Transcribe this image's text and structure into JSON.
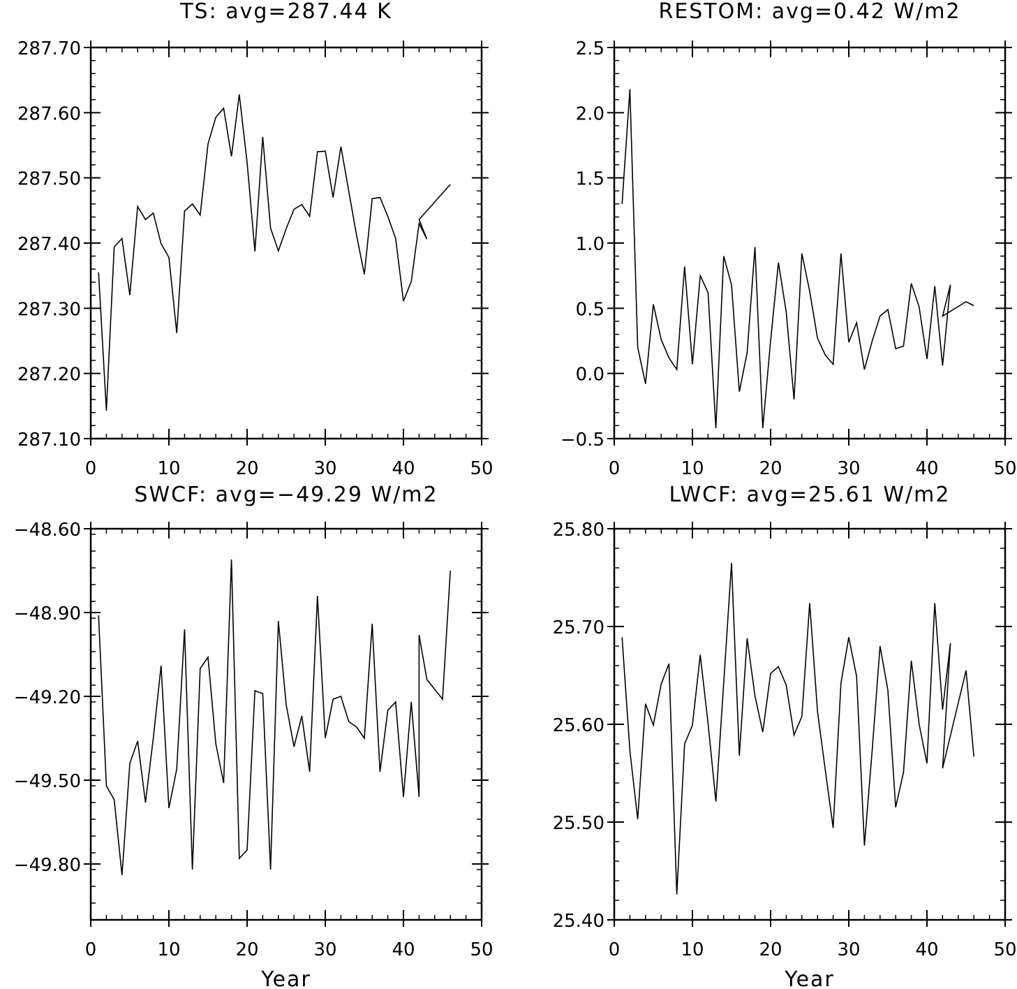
{
  "chart_data": [
    {
      "type": "line",
      "title": "TS: avg=287.44 K",
      "xlabel": "",
      "ylabel": "",
      "xlim": [
        0,
        50
      ],
      "ylim": [
        287.1,
        287.7
      ],
      "xticks": [
        0,
        10,
        20,
        30,
        40,
        50
      ],
      "xtick_labels": [
        "0",
        "10",
        "20",
        "30",
        "40",
        "50"
      ],
      "yticks": [
        287.1,
        287.2,
        287.3,
        287.4,
        287.5,
        287.6,
        287.7
      ],
      "ytick_labels": [
        "287.10",
        "287.20",
        "287.30",
        "287.40",
        "287.50",
        "287.60",
        "287.70"
      ],
      "grid": false,
      "series": [
        {
          "x": [
            1,
            2,
            3,
            4,
            5,
            6,
            7,
            8,
            9,
            10,
            11,
            12,
            13,
            14,
            15,
            16,
            17,
            18,
            19,
            20,
            21,
            22,
            23,
            24,
            25,
            26,
            27,
            28,
            29,
            30,
            31,
            32,
            33,
            34,
            35,
            36,
            37,
            38,
            39,
            40,
            41,
            42,
            43,
            42,
            46
          ],
          "y": [
            287.355,
            287.143,
            287.394,
            287.407,
            287.32,
            287.456,
            287.436,
            287.446,
            287.399,
            287.378,
            287.262,
            287.449,
            287.46,
            287.443,
            287.552,
            287.593,
            287.607,
            287.533,
            287.628,
            287.524,
            287.387,
            287.563,
            287.423,
            287.388,
            287.422,
            287.452,
            287.459,
            287.441,
            287.54,
            287.541,
            287.47,
            287.548,
            287.48,
            287.412,
            287.352,
            287.468,
            287.47,
            287.441,
            287.407,
            287.311,
            287.341,
            287.43,
            287.406,
            287.436,
            287.49
          ]
        }
      ]
    },
    {
      "type": "line",
      "title": "RESTOM: avg=0.42 W/m2",
      "xlabel": "",
      "ylabel": "",
      "xlim": [
        0,
        50
      ],
      "ylim": [
        -0.5,
        2.5
      ],
      "xticks": [
        0,
        10,
        20,
        30,
        40,
        50
      ],
      "xtick_labels": [
        "0",
        "10",
        "20",
        "30",
        "40",
        "50"
      ],
      "yticks": [
        -0.5,
        0.0,
        0.5,
        1.0,
        1.5,
        2.0,
        2.5
      ],
      "ytick_labels": [
        "−0.5",
        "0.0",
        "0.5",
        "1.0",
        "1.5",
        "2.0",
        "2.5"
      ],
      "grid": false,
      "series": [
        {
          "x": [
            1,
            2,
            3,
            4,
            5,
            6,
            7,
            8,
            9,
            10,
            11,
            12,
            13,
            14,
            15,
            16,
            17,
            18,
            19,
            20,
            21,
            22,
            23,
            24,
            25,
            26,
            27,
            28,
            29,
            30,
            31,
            32,
            33,
            34,
            35,
            36,
            37,
            38,
            39,
            40,
            41,
            42,
            43,
            42,
            45,
            46
          ],
          "y": [
            1.3,
            2.18,
            0.2,
            -0.08,
            0.53,
            0.26,
            0.12,
            0.03,
            0.82,
            0.07,
            0.75,
            0.62,
            -0.42,
            0.9,
            0.68,
            -0.14,
            0.16,
            0.97,
            -0.42,
            0.25,
            0.85,
            0.47,
            -0.2,
            0.92,
            0.63,
            0.27,
            0.14,
            0.07,
            0.92,
            0.24,
            0.39,
            0.03,
            0.25,
            0.44,
            0.49,
            0.19,
            0.21,
            0.69,
            0.51,
            0.11,
            0.67,
            0.06,
            0.68,
            0.44,
            0.55,
            0.52
          ]
        }
      ]
    },
    {
      "type": "line",
      "title": "SWCF: avg=−49.29 W/m2",
      "xlabel": "Year",
      "ylabel": "",
      "xlim": [
        0,
        50
      ],
      "ylim": [
        -50.0,
        -48.6
      ],
      "xticks": [
        0,
        10,
        20,
        30,
        40,
        50
      ],
      "xtick_labels": [
        "0",
        "10",
        "20",
        "30",
        "40",
        "50"
      ],
      "yticks": [
        -49.8,
        -49.5,
        -49.2,
        -48.9,
        -48.6
      ],
      "ytick_labels": [
        "−49.80",
        "−49.50",
        "−49.20",
        "−48.90",
        "−48.60"
      ],
      "grid": false,
      "series": [
        {
          "x": [
            1,
            2,
            3,
            4,
            5,
            6,
            7,
            8,
            9,
            10,
            11,
            12,
            13,
            14,
            15,
            16,
            17,
            18,
            19,
            20,
            21,
            22,
            23,
            24,
            25,
            26,
            27,
            28,
            29,
            30,
            31,
            32,
            33,
            34,
            35,
            36,
            37,
            38,
            39,
            40,
            41,
            42,
            42,
            43,
            45,
            46
          ],
          "y": [
            -48.91,
            -49.52,
            -49.57,
            -49.84,
            -49.44,
            -49.36,
            -49.58,
            -49.35,
            -49.09,
            -49.6,
            -49.46,
            -48.96,
            -49.82,
            -49.1,
            -49.06,
            -49.37,
            -49.51,
            -48.71,
            -49.78,
            -49.75,
            -49.18,
            -49.19,
            -49.82,
            -48.93,
            -49.23,
            -49.38,
            -49.27,
            -49.47,
            -48.84,
            -49.35,
            -49.21,
            -49.2,
            -49.29,
            -49.31,
            -49.35,
            -48.94,
            -49.47,
            -49.25,
            -49.22,
            -49.56,
            -49.22,
            -49.56,
            -48.98,
            -49.14,
            -49.21,
            -48.75
          ]
        }
      ]
    },
    {
      "type": "line",
      "title": "LWCF: avg=25.61 W/m2",
      "xlabel": "Year",
      "ylabel": "",
      "xlim": [
        0,
        50
      ],
      "ylim": [
        25.4,
        25.8
      ],
      "xticks": [
        0,
        10,
        20,
        30,
        40,
        50
      ],
      "xtick_labels": [
        "0",
        "10",
        "20",
        "30",
        "40",
        "50"
      ],
      "yticks": [
        25.4,
        25.5,
        25.6,
        25.7,
        25.8
      ],
      "ytick_labels": [
        "25.40",
        "25.50",
        "25.60",
        "25.70",
        "25.80"
      ],
      "grid": false,
      "series": [
        {
          "x": [
            1,
            2,
            3,
            4,
            5,
            6,
            7,
            8,
            9,
            10,
            11,
            12,
            13,
            14,
            15,
            16,
            17,
            18,
            19,
            20,
            21,
            22,
            23,
            24,
            25,
            26,
            27,
            28,
            29,
            30,
            31,
            32,
            33,
            34,
            35,
            36,
            37,
            38,
            39,
            40,
            41,
            42,
            43,
            42,
            45,
            46
          ],
          "y": [
            25.689,
            25.573,
            25.503,
            25.621,
            25.599,
            25.641,
            25.662,
            25.426,
            25.58,
            25.599,
            25.671,
            25.601,
            25.521,
            25.642,
            25.765,
            25.568,
            25.688,
            25.629,
            25.592,
            25.652,
            25.659,
            25.64,
            25.589,
            25.608,
            25.724,
            25.613,
            25.553,
            25.494,
            25.642,
            25.689,
            25.649,
            25.476,
            25.574,
            25.68,
            25.635,
            25.515,
            25.551,
            25.665,
            25.6,
            25.56,
            25.724,
            25.615,
            25.683,
            25.555,
            25.655,
            25.567
          ]
        }
      ]
    }
  ]
}
